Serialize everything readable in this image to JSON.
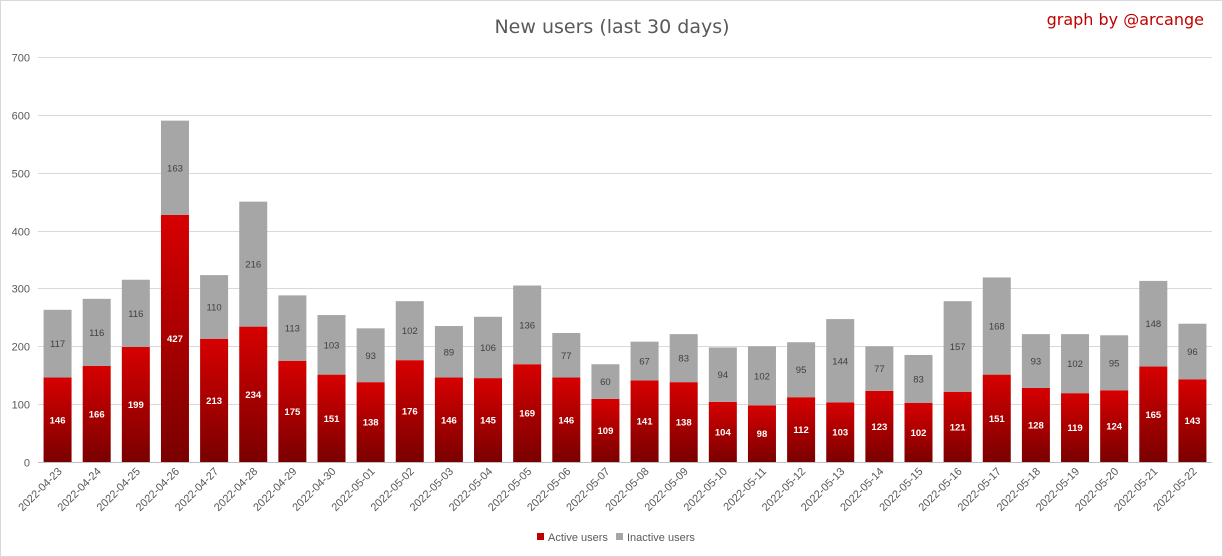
{
  "chart_data": {
    "type": "bar",
    "stacked": true,
    "title": "New users (last 30 days)",
    "credit": "graph by @arcange",
    "ylim": [
      0,
      700
    ],
    "yticks": [
      0,
      100,
      200,
      300,
      400,
      500,
      600,
      700
    ],
    "grid": true,
    "legend_position": "bottom",
    "categories": [
      "2022-04-23",
      "2022-04-24",
      "2022-04-25",
      "2022-04-26",
      "2022-04-27",
      "2022-04-28",
      "2022-04-29",
      "2022-04-30",
      "2022-05-01",
      "2022-05-02",
      "2022-05-03",
      "2022-05-04",
      "2022-05-05",
      "2022-05-06",
      "2022-05-07",
      "2022-05-08",
      "2022-05-09",
      "2022-05-10",
      "2022-05-11",
      "2022-05-12",
      "2022-05-13",
      "2022-05-14",
      "2022-05-15",
      "2022-05-16",
      "2022-05-17",
      "2022-05-18",
      "2022-05-19",
      "2022-05-20",
      "2022-05-21",
      "2022-05-22"
    ],
    "series": [
      {
        "name": "Active users",
        "color": "#c00000",
        "values": [
          146,
          166,
          199,
          427,
          213,
          234,
          175,
          151,
          138,
          176,
          146,
          145,
          169,
          146,
          109,
          141,
          138,
          104,
          98,
          112,
          103,
          123,
          102,
          121,
          151,
          128,
          119,
          124,
          165,
          143
        ]
      },
      {
        "name": "Inactive users",
        "color": "#a6a6a6",
        "values": [
          117,
          116,
          116,
          163,
          110,
          216,
          113,
          103,
          93,
          102,
          89,
          106,
          136,
          77,
          60,
          67,
          83,
          94,
          102,
          95,
          144,
          77,
          83,
          157,
          168,
          93,
          102,
          95,
          148,
          96
        ]
      }
    ]
  }
}
